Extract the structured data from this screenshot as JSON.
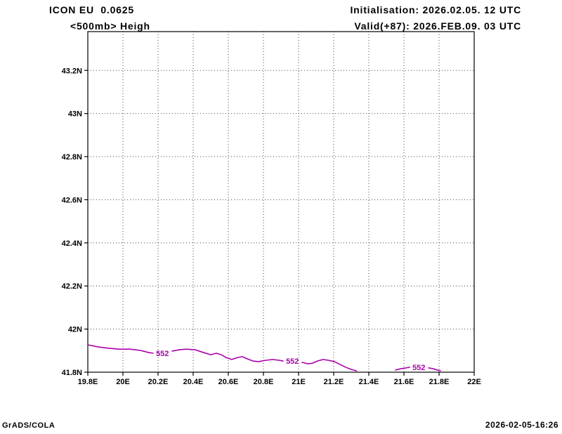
{
  "header": {
    "model": "ICON EU  0.0625",
    "field": "<500mb> Heigh",
    "init": "Initialisation: 2026.02.05. 12 UTC",
    "valid": "Valid(+87): 2026.FEB.09. 03 UTC"
  },
  "footer": {
    "brand": "GrADS/COLA",
    "timestamp": "2026-02-05-16:26"
  },
  "chart_data": {
    "type": "line",
    "variant": "contour-map",
    "title": "<500mb> Heigh",
    "xlabel": "",
    "ylabel": "",
    "xlim": [
      19.8,
      22.0
    ],
    "ylim": [
      41.8,
      43.38
    ],
    "grid": "dotted",
    "grid_color": "#444444",
    "x_ticks": [
      {
        "v": 19.8,
        "label": "19.8E"
      },
      {
        "v": 20.0,
        "label": "20E"
      },
      {
        "v": 20.2,
        "label": "20.2E"
      },
      {
        "v": 20.4,
        "label": "20.4E"
      },
      {
        "v": 20.6,
        "label": "20.6E"
      },
      {
        "v": 20.8,
        "label": "20.8E"
      },
      {
        "v": 21.0,
        "label": "21E"
      },
      {
        "v": 21.2,
        "label": "21.2E"
      },
      {
        "v": 21.4,
        "label": "21.4E"
      },
      {
        "v": 21.6,
        "label": "21.6E"
      },
      {
        "v": 21.8,
        "label": "21.8E"
      },
      {
        "v": 22.0,
        "label": "22E"
      }
    ],
    "y_ticks": [
      {
        "v": 43.2,
        "label": "43.2N"
      },
      {
        "v": 43.0,
        "label": "43N"
      },
      {
        "v": 42.8,
        "label": "42.8N"
      },
      {
        "v": 42.6,
        "label": "42.6N"
      },
      {
        "v": 42.4,
        "label": "42.4N"
      },
      {
        "v": 42.2,
        "label": "42.2N"
      },
      {
        "v": 42.0,
        "label": "42N"
      },
      {
        "v": 41.8,
        "label": "41.8N"
      }
    ],
    "series": [
      {
        "name": "500mb height contour 552 dam",
        "value": 552,
        "color": "#aa00aa",
        "segments": [
          [
            [
              19.8,
              41.927
            ],
            [
              19.86,
              41.917
            ],
            [
              19.92,
              41.911
            ],
            [
              19.98,
              41.907
            ],
            [
              20.04,
              41.907
            ],
            [
              20.1,
              41.901
            ],
            [
              20.148,
              41.891
            ],
            [
              20.172,
              41.888
            ]
          ],
          [
            [
              20.28,
              41.898
            ],
            [
              20.32,
              41.904
            ],
            [
              20.36,
              41.907
            ],
            [
              20.412,
              41.904
            ],
            [
              20.46,
              41.891
            ],
            [
              20.5,
              41.881
            ],
            [
              20.532,
              41.888
            ],
            [
              20.56,
              41.881
            ],
            [
              20.588,
              41.868
            ],
            [
              20.62,
              41.859
            ],
            [
              20.652,
              41.868
            ],
            [
              20.68,
              41.872
            ],
            [
              20.708,
              41.862
            ],
            [
              20.74,
              41.852
            ],
            [
              20.772,
              41.849
            ],
            [
              20.812,
              41.855
            ],
            [
              20.852,
              41.859
            ],
            [
              20.892,
              41.855
            ],
            [
              20.912,
              41.852
            ]
          ],
          [
            [
              21.02,
              41.846
            ],
            [
              21.052,
              41.839
            ],
            [
              21.08,
              41.842
            ],
            [
              21.108,
              41.852
            ],
            [
              21.14,
              41.859
            ],
            [
              21.172,
              41.855
            ],
            [
              21.204,
              41.849
            ],
            [
              21.236,
              41.836
            ],
            [
              21.268,
              41.823
            ],
            [
              21.3,
              41.813
            ],
            [
              21.33,
              41.806
            ]
          ],
          [
            [
              21.552,
              41.81
            ],
            [
              21.58,
              41.816
            ],
            [
              21.612,
              41.82
            ],
            [
              21.632,
              41.823
            ]
          ],
          [
            [
              21.74,
              41.82
            ],
            [
              21.768,
              41.816
            ],
            [
              21.788,
              41.81
            ],
            [
              21.808,
              41.807
            ]
          ]
        ]
      }
    ],
    "annotations": [
      {
        "text": "552",
        "x": 20.225,
        "y": 41.888
      },
      {
        "text": "552",
        "x": 20.965,
        "y": 41.852
      },
      {
        "text": "552",
        "x": 21.685,
        "y": 41.823
      }
    ]
  }
}
